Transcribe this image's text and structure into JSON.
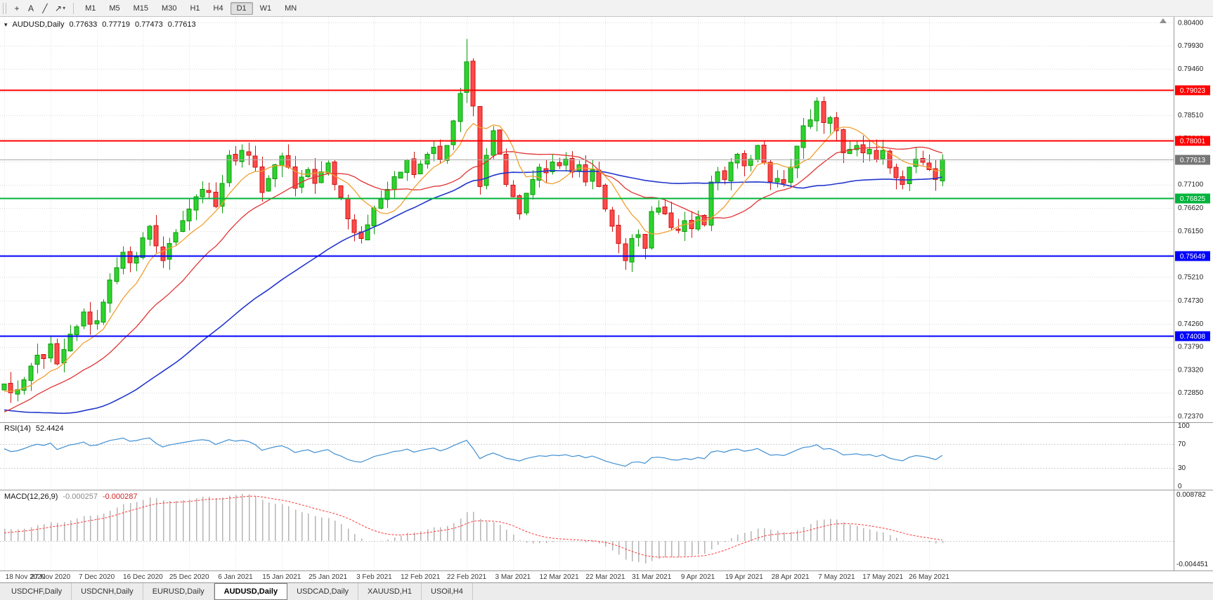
{
  "toolbar": {
    "tools": [
      {
        "id": "crosshair",
        "glyph": "+"
      },
      {
        "id": "text",
        "glyph": "A"
      },
      {
        "id": "trendline",
        "glyph": "╱"
      },
      {
        "id": "arrows",
        "glyph": "↗",
        "caret": "▾"
      }
    ],
    "timeframes": [
      "M1",
      "M5",
      "M15",
      "M30",
      "H1",
      "H4",
      "D1",
      "W1",
      "MN"
    ],
    "active_timeframe": "D1"
  },
  "chart": {
    "title": {
      "symbol_period": "AUDUSD,Daily",
      "open": "0.77633",
      "high": "0.77719",
      "low": "0.77473",
      "close": "0.77613"
    },
    "price_labels": [
      "0.80400",
      "0.79930",
      "0.79460",
      "0.78980",
      "0.78510",
      "0.78040",
      "0.77570",
      "0.77100",
      "0.76620",
      "0.76150",
      "0.75680",
      "0.75210",
      "0.74730",
      "0.74260",
      "0.73790",
      "0.73320",
      "0.72850",
      "0.72370"
    ],
    "hlines": [
      {
        "label": "0.79023",
        "value": 0.79023,
        "color": "#ff0000"
      },
      {
        "label": "0.78001",
        "value": 0.78001,
        "color": "#ff0000"
      },
      {
        "label": "0.76825",
        "value": 0.76825,
        "color": "#00b43c"
      },
      {
        "label": "0.75649",
        "value": 0.75649,
        "color": "#0000ff"
      },
      {
        "label": "0.74008",
        "value": 0.74008,
        "color": "#0000ff"
      }
    ],
    "bid": {
      "label": "0.77613",
      "value": 0.77613
    },
    "pre_closes": [
      0.73,
      0.731,
      0.7318,
      0.7305,
      0.7322,
      0.7335,
      0.7328,
      0.7345,
      0.7352,
      0.734,
      0.7355,
      0.7368,
      0.736,
      0.7375,
      0.7382,
      0.737,
      0.7385,
      0.739,
      0.7378,
      0.7388,
      0.737,
      0.734,
      0.731,
      0.728,
      0.73,
      0.7265,
      0.724,
      0.721,
      0.723,
      0.7195,
      0.717,
      0.714,
      0.716,
      0.7125,
      0.7105,
      0.713,
      0.715,
      0.712,
      0.71,
      0.7115,
      0.714,
      0.7165,
      0.715,
      0.718,
      0.72,
      0.7185,
      0.7215,
      0.724,
      0.7225,
      0.725,
      0.727,
      0.7255,
      0.7275,
      0.729,
      0.7268,
      0.7282,
      0.7295,
      0.728,
      0.7292,
      0.7298
    ],
    "closes": [
      0.7303,
      0.7285,
      0.7292,
      0.7312,
      0.734,
      0.7362,
      0.7355,
      0.7385,
      0.7344,
      0.7373,
      0.7405,
      0.742,
      0.745,
      0.7425,
      0.7432,
      0.747,
      0.7515,
      0.754,
      0.7572,
      0.755,
      0.7562,
      0.7601,
      0.7625,
      0.7585,
      0.7555,
      0.759,
      0.7612,
      0.7636,
      0.766,
      0.7685,
      0.77,
      0.7694,
      0.7665,
      0.7712,
      0.777,
      0.7758,
      0.778,
      0.777,
      0.7745,
      0.7694,
      0.7722,
      0.775,
      0.7768,
      0.7745,
      0.7702,
      0.7725,
      0.774,
      0.7712,
      0.7736,
      0.7754,
      0.771,
      0.7684,
      0.764,
      0.7612,
      0.76,
      0.7628,
      0.7662,
      0.768,
      0.77,
      0.7726,
      0.7735,
      0.776,
      0.773,
      0.7752,
      0.7772,
      0.7786,
      0.7762,
      0.779,
      0.784,
      0.7896,
      0.796,
      0.787,
      0.7706,
      0.777,
      0.782,
      0.7772,
      0.771,
      0.7685,
      0.765,
      0.7692,
      0.772,
      0.7745,
      0.7734,
      0.7756,
      0.7748,
      0.7762,
      0.7735,
      0.775,
      0.7715,
      0.774,
      0.7706,
      0.766,
      0.7625,
      0.759,
      0.7555,
      0.76,
      0.7608,
      0.758,
      0.7655,
      0.7662,
      0.765,
      0.7622,
      0.7616,
      0.7636,
      0.762,
      0.7644,
      0.7628,
      0.7715,
      0.7736,
      0.772,
      0.7755,
      0.7772,
      0.7748,
      0.7762,
      0.779,
      0.7755,
      0.7716,
      0.7722,
      0.7712,
      0.7745,
      0.7788,
      0.783,
      0.7842,
      0.788,
      0.7836,
      0.7846,
      0.782,
      0.7775,
      0.7782,
      0.779,
      0.7775,
      0.7782,
      0.776,
      0.778,
      0.7744,
      0.7724,
      0.771,
      0.7745,
      0.7762,
      0.7755,
      0.774,
      0.772,
      0.77613
    ],
    "colors": {
      "up_fill": "#2fd32f",
      "up_stroke": "#0a9b0a",
      "down_fill": "#ff4a4a",
      "down_stroke": "#cc1414",
      "ma_fast": "#f0a030",
      "ma_mid": "#e03434",
      "ma_slow": "#2236cc",
      "rsi_line": "#3f8fd2",
      "macd_hist": "#b4b4b4",
      "macd_signal": "#ff3b3b",
      "bid_line": "#aaaaaa",
      "bid_tag_bg": "#767676",
      "grid": "#dcdcdc",
      "separator": "#9a9a9a"
    }
  },
  "rsi": {
    "name": "RSI(14)",
    "value": "52.4424",
    "levels": [
      "100",
      "70",
      "30",
      "0"
    ]
  },
  "macd": {
    "name": "MACD(12,26,9)",
    "value_main": "-0.000257",
    "value_signal": "-0.000287",
    "axis_max": "0.008782",
    "axis_min": "-0.004451"
  },
  "dates": [
    "18 Nov 2020",
    "27 Nov 2020",
    "7 Dec 2020",
    "16 Dec 2020",
    "25 Dec 2020",
    "6 Jan 2021",
    "15 Jan 2021",
    "25 Jan 2021",
    "3 Feb 2021",
    "12 Feb 2021",
    "22 Feb 2021",
    "3 Mar 2021",
    "12 Mar 2021",
    "22 Mar 2021",
    "31 Mar 2021",
    "9 Apr 2021",
    "19 Apr 2021",
    "28 Apr 2021",
    "7 May 2021",
    "17 May 2021",
    "26 May 2021"
  ],
  "tabs": [
    {
      "label": "USDCHF,Daily"
    },
    {
      "label": "USDCNH,Daily"
    },
    {
      "label": "EURUSD,Daily"
    },
    {
      "label": "AUDUSD,Daily",
      "active": true
    },
    {
      "label": "USDCAD,Daily"
    },
    {
      "label": "XAUUSD,H1"
    },
    {
      "label": "USOil,H4"
    }
  ]
}
